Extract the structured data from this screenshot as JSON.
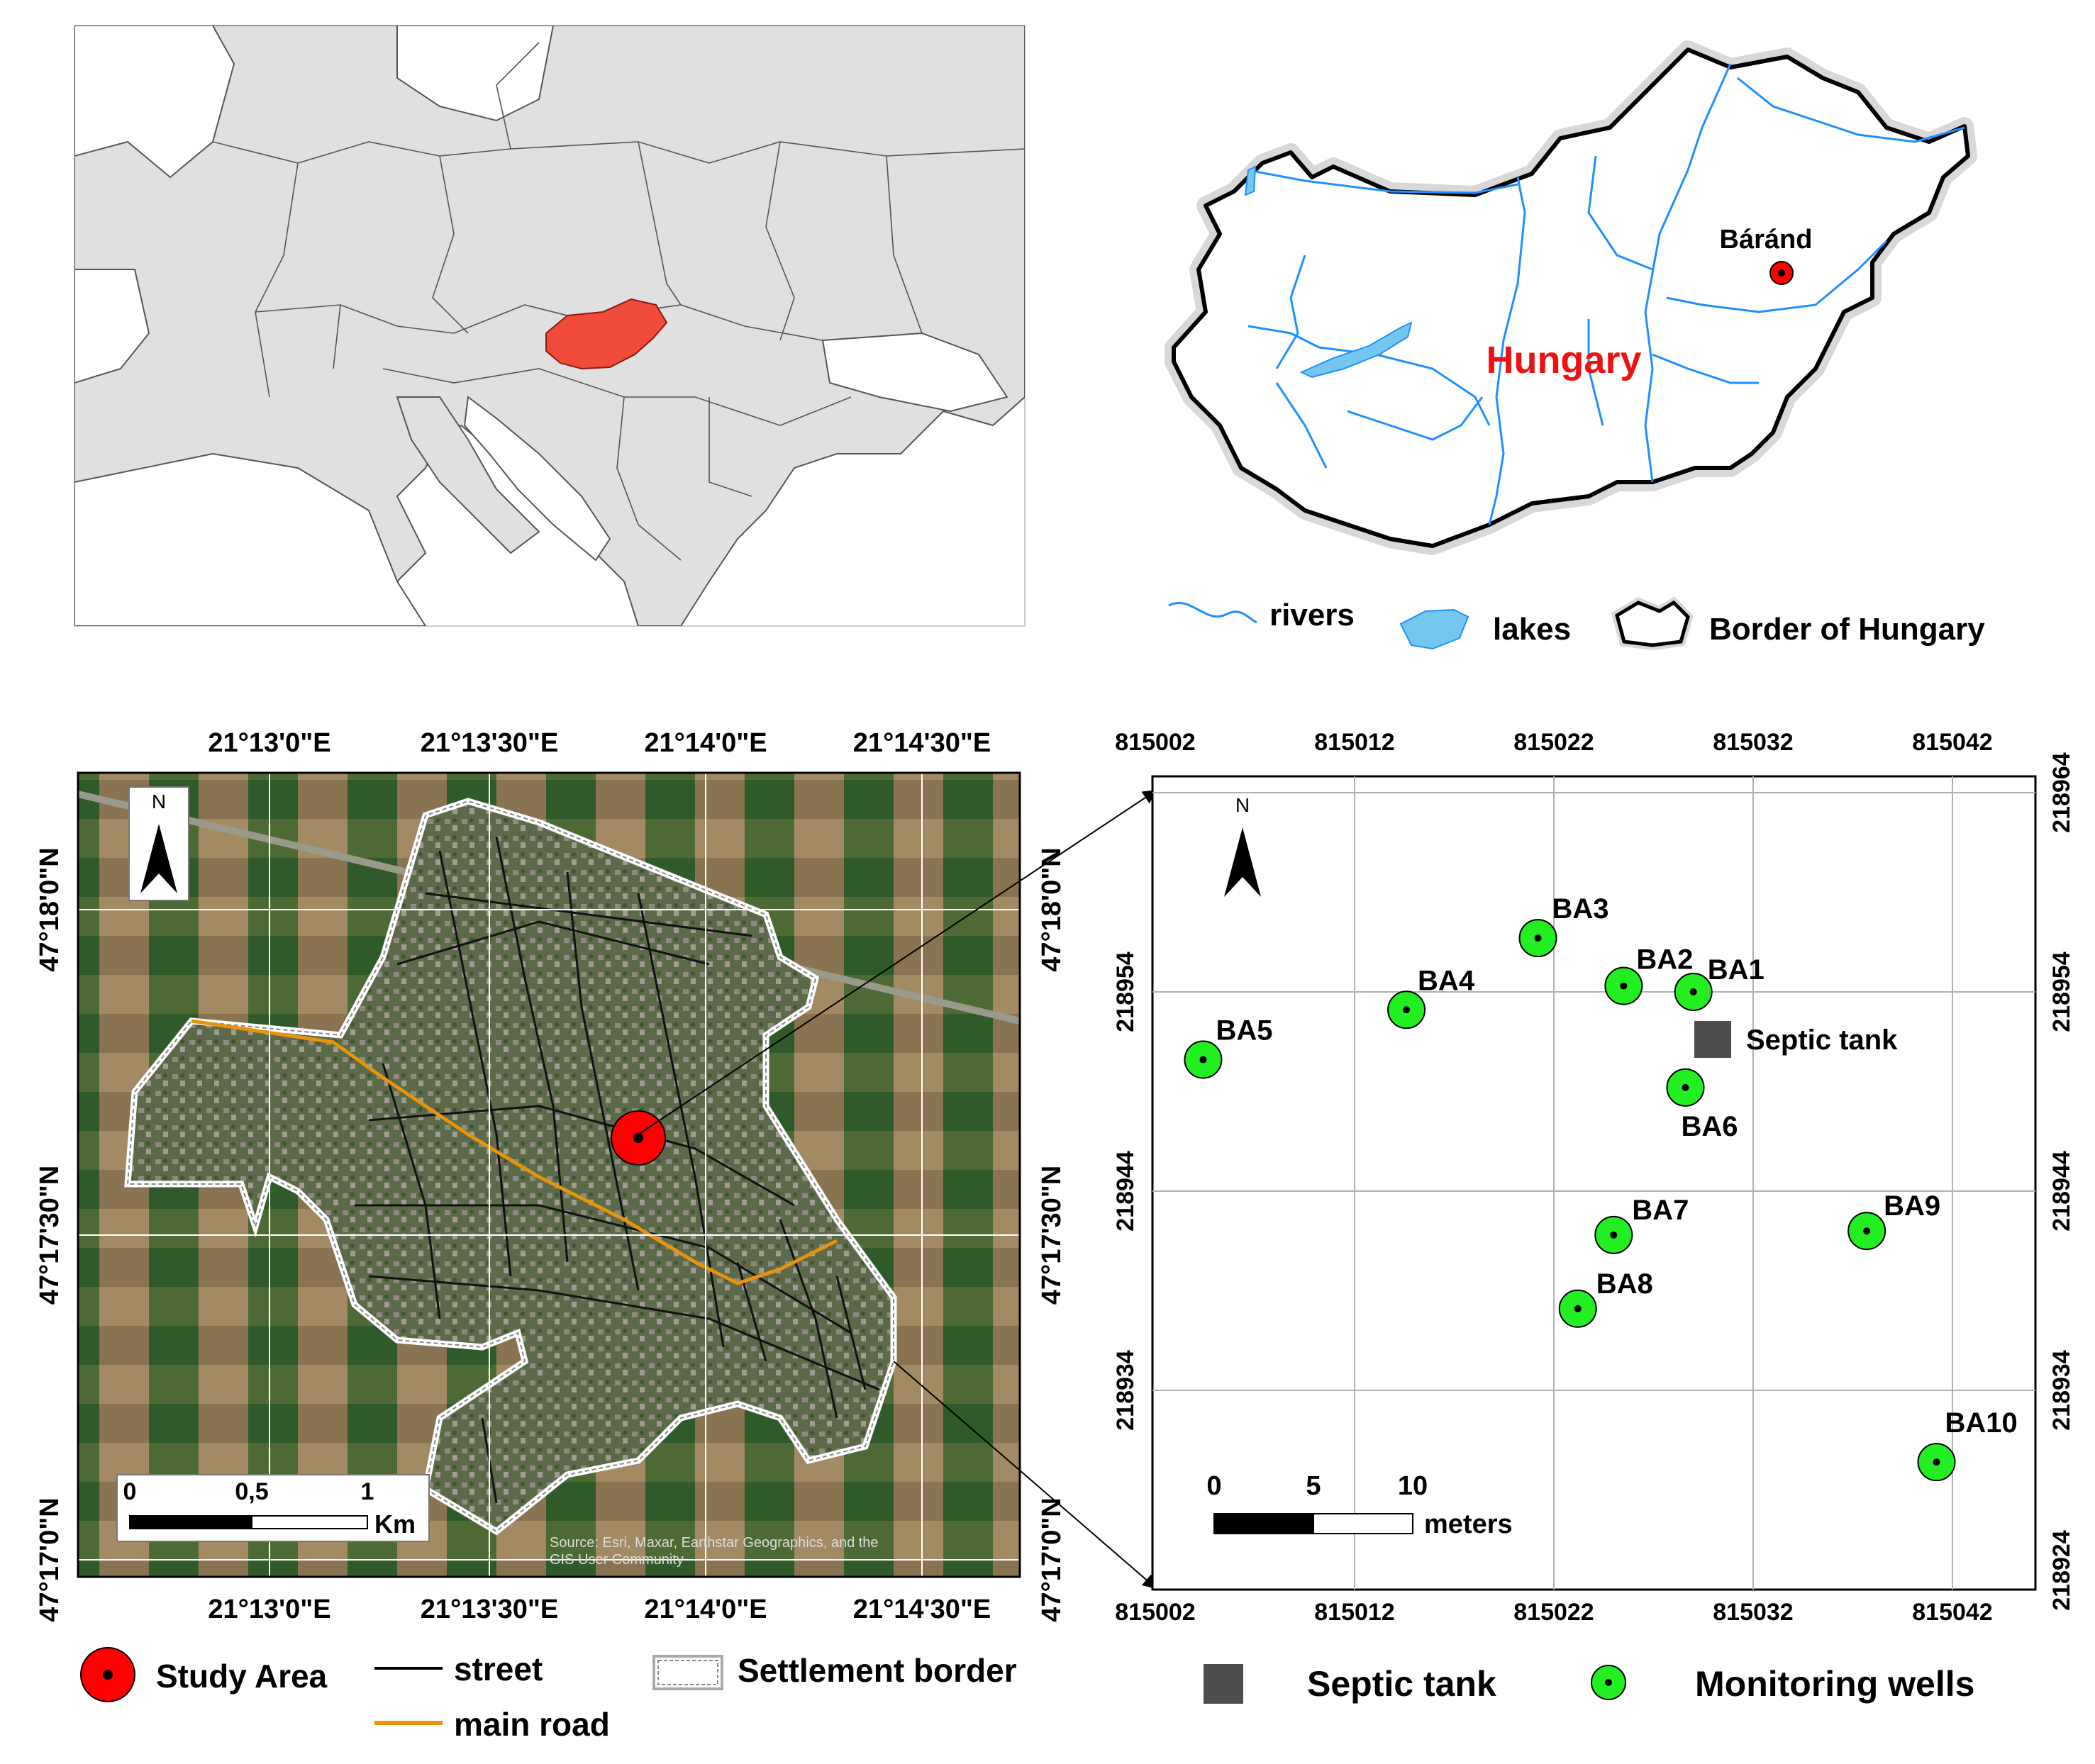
{
  "europe_map": {
    "highlight_color": "#f04a3a"
  },
  "hungary_map": {
    "country_label": "Hungary",
    "site_label": "Báránd",
    "river_color": "#1e90ff",
    "label_color": "#ee1111"
  },
  "legend_top": {
    "rivers": "rivers",
    "lakes": "lakes",
    "border": "Border of Hungary"
  },
  "satellite_map": {
    "north_label": "N",
    "lon_ticks": [
      "21°13'0\"E",
      "21°13'30\"E",
      "21°14'0\"E",
      "21°14'30\"E"
    ],
    "lat_ticks": [
      "47°18'0\"N",
      "47°17'30\"N",
      "47°17'0\"N"
    ],
    "scale": {
      "labels": [
        "0",
        "0,5",
        "1"
      ],
      "unit": "Km"
    },
    "attribution_line1": "Source: Esri, Maxar, Earthstar Geographics, and the",
    "attribution_line2": "GIS User Community"
  },
  "site_map": {
    "north_label": "N",
    "x_ticks": [
      "815002",
      "815012",
      "815022",
      "815032",
      "815042"
    ],
    "y_ticks": [
      "218964",
      "218954",
      "218944",
      "218934",
      "218924"
    ],
    "septic_tank_label": "Septic tank",
    "wells": [
      {
        "id": "BA1",
        "x": 815029.0,
        "y": 218954.0
      },
      {
        "id": "BA2",
        "x": 815025.5,
        "y": 218954.3
      },
      {
        "id": "BA3",
        "x": 815021.2,
        "y": 218956.7
      },
      {
        "id": "BA4",
        "x": 815014.6,
        "y": 218953.1
      },
      {
        "id": "BA5",
        "x": 815004.4,
        "y": 218950.6
      },
      {
        "id": "BA6",
        "x": 815028.6,
        "y": 218949.2
      },
      {
        "id": "BA7",
        "x": 815025.0,
        "y": 218941.8
      },
      {
        "id": "BA8",
        "x": 815023.2,
        "y": 218938.1
      },
      {
        "id": "BA9",
        "x": 815037.7,
        "y": 218942.0
      },
      {
        "id": "BA10",
        "x": 815041.2,
        "y": 218930.4
      }
    ],
    "scale": {
      "labels": [
        "0",
        "5",
        "10"
      ],
      "unit": "meters"
    }
  },
  "legend_bottom": {
    "study_area": "Study Area",
    "street": "street",
    "main_road": "main road",
    "settlement_border": "Settlement border",
    "septic_tank": "Septic tank",
    "monitoring_wells": "Monitoring wells"
  }
}
